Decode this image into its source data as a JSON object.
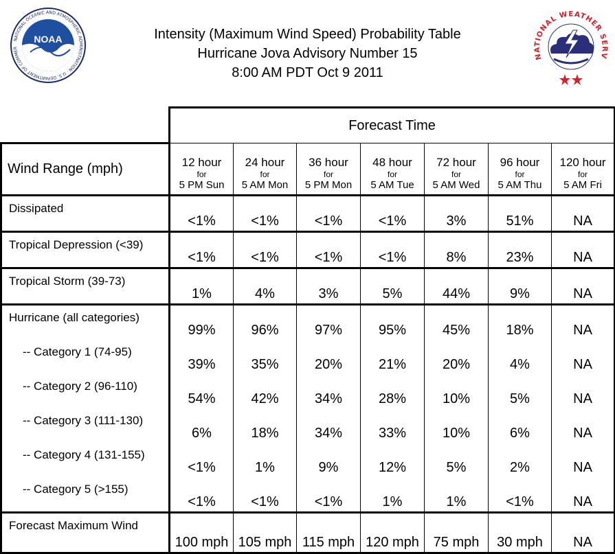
{
  "header": {
    "title_line1": "Intensity (Maximum Wind Speed) Probability Table",
    "title_line2": "Hurricane Jova Advisory Number 15",
    "title_line3": "8:00 AM PDT Oct 9 2011",
    "noaa_logo_text": "NOAA",
    "noaa_ring_text": "NATIONAL OCEANIC AND ATMOSPHERIC ADMINISTRATION · U.S. DEPARTMENT OF COMMERCE",
    "nws_ring_text": "NATIONAL WEATHER SERVICE"
  },
  "table": {
    "forecast_time_label": "Forecast Time",
    "wind_range_label": "Wind Range (mph)",
    "columns": [
      {
        "hours": "12 hour",
        "for": "for",
        "when": "5 PM Sun"
      },
      {
        "hours": "24 hour",
        "for": "for",
        "when": "5 AM Mon"
      },
      {
        "hours": "36 hour",
        "for": "for",
        "when": "5 PM Mon"
      },
      {
        "hours": "48 hour",
        "for": "for",
        "when": "5 AM Tue"
      },
      {
        "hours": "72 hour",
        "for": "for",
        "when": "5 AM Wed"
      },
      {
        "hours": "96 hour",
        "for": "for",
        "when": "5 AM Thu"
      },
      {
        "hours": "120 hour",
        "for": "for",
        "when": "5 AM Fri"
      }
    ],
    "rows": [
      {
        "label": "Dissipated",
        "values": [
          "<1%",
          "<1%",
          "<1%",
          "<1%",
          "3%",
          "51%",
          "NA"
        ]
      },
      {
        "label": "Tropical Depression (<39)",
        "values": [
          "<1%",
          "<1%",
          "<1%",
          "<1%",
          "8%",
          "23%",
          "NA"
        ]
      },
      {
        "label": "Tropical Storm (39-73)",
        "values": [
          "1%",
          "4%",
          "3%",
          "5%",
          "44%",
          "9%",
          "NA"
        ]
      },
      {
        "label": "Hurricane (all categories)",
        "values": [
          "99%",
          "96%",
          "97%",
          "95%",
          "45%",
          "18%",
          "NA"
        ]
      },
      {
        "label": "-- Category 1 (74-95)",
        "values": [
          "39%",
          "35%",
          "20%",
          "21%",
          "20%",
          "4%",
          "NA"
        ]
      },
      {
        "label": "-- Category 2 (96-110)",
        "values": [
          "54%",
          "42%",
          "34%",
          "28%",
          "10%",
          "5%",
          "NA"
        ]
      },
      {
        "label": "-- Category 3 (111-130)",
        "values": [
          "6%",
          "18%",
          "34%",
          "33%",
          "10%",
          "6%",
          "NA"
        ]
      },
      {
        "label": "-- Category 4 (131-155)",
        "values": [
          "<1%",
          "1%",
          "9%",
          "12%",
          "5%",
          "2%",
          "NA"
        ]
      },
      {
        "label": "-- Category 5 (>155)",
        "values": [
          "<1%",
          "<1%",
          "<1%",
          "1%",
          "1%",
          "<1%",
          "NA"
        ]
      },
      {
        "label": "Forecast Maximum Wind",
        "values": [
          "100 mph",
          "105 mph",
          "115 mph",
          "120 mph",
          "75 mph",
          "30 mph",
          "NA"
        ]
      }
    ]
  },
  "colors": {
    "noaa_blue": "#1f4fa0",
    "noaa_navy": "#1b2a6b",
    "nws_red": "#d9202a",
    "nws_navy": "#1b2a6b",
    "cloud_blue": "#2b2f7a",
    "grid_line": "#000000"
  },
  "icons": {
    "noaa_logo": "noaa-seagull-logo-icon",
    "nws_logo": "nws-lightning-cloud-logo-icon"
  }
}
